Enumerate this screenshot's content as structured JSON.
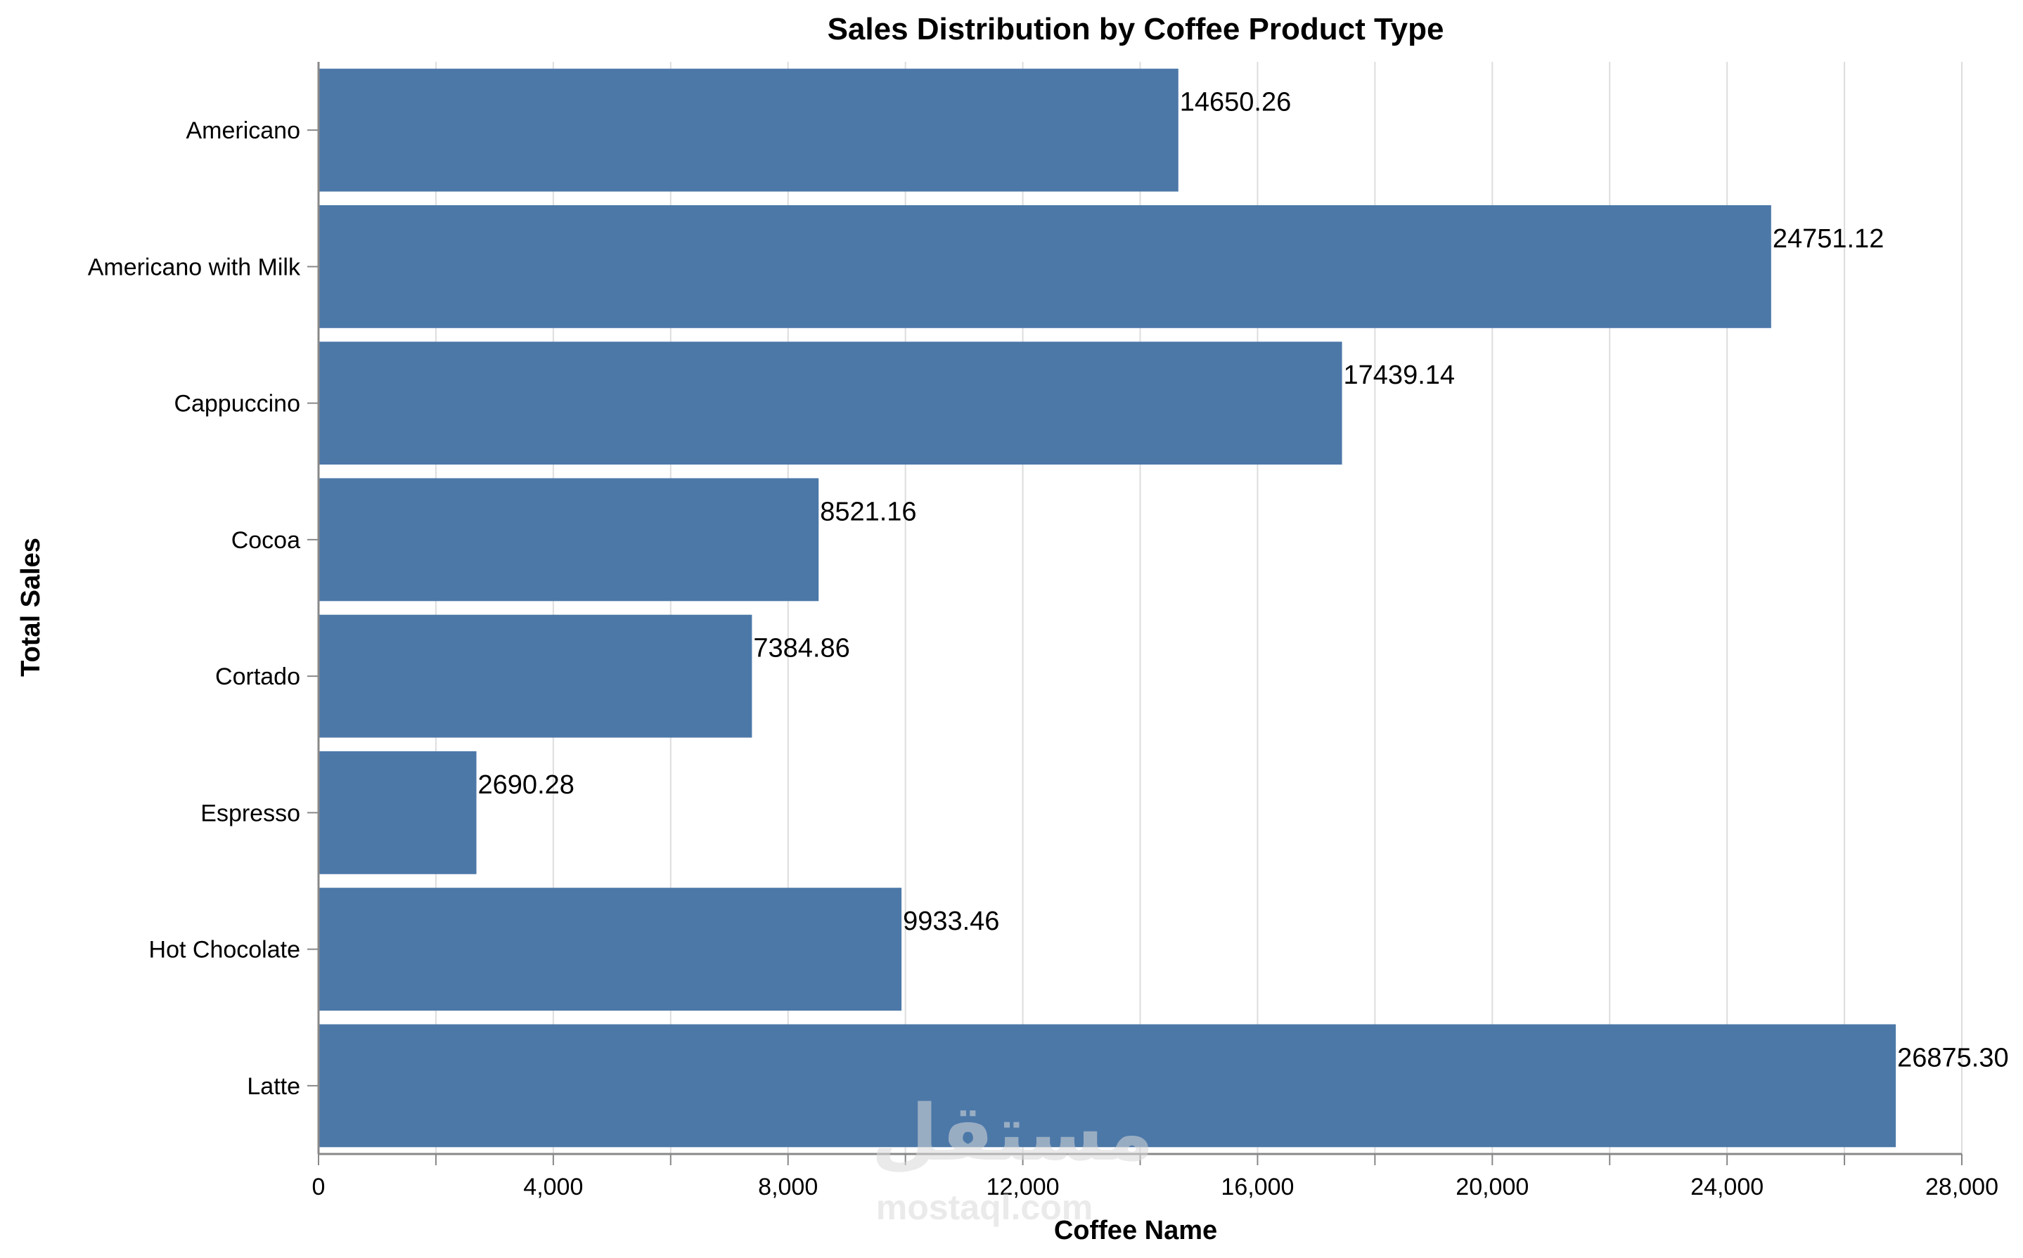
{
  "chart_data": {
    "type": "bar",
    "orientation": "horizontal",
    "title": "Sales Distribution by Coffee Product Type",
    "xlabel": "Coffee Name",
    "ylabel": "Total Sales",
    "categories": [
      "Americano",
      "Americano with Milk",
      "Cappuccino",
      "Cocoa",
      "Cortado",
      "Espresso",
      "Hot Chocolate",
      "Latte"
    ],
    "values": [
      14650.26,
      24751.12,
      17439.14,
      8521.16,
      7384.86,
      2690.28,
      9933.46,
      26875.3
    ],
    "value_labels": [
      "14650.26",
      "24751.12",
      "17439.14",
      "8521.16",
      "7384.86",
      "2690.28",
      "9933.46",
      "26875.30"
    ],
    "xlim": [
      0,
      28000
    ],
    "x_ticks": [
      0,
      4000,
      8000,
      12000,
      16000,
      20000,
      24000,
      28000
    ],
    "x_tick_labels": [
      "0",
      "4,000",
      "8,000",
      "12,000",
      "16,000",
      "20,000",
      "24,000",
      "28,000"
    ],
    "grid": true,
    "bar_color": "#4c78a8",
    "grid_color": "#dddddd",
    "axis_color": "#888888"
  },
  "watermark": {
    "brand_text": "مستقل",
    "url_text": "mostaql.com"
  }
}
